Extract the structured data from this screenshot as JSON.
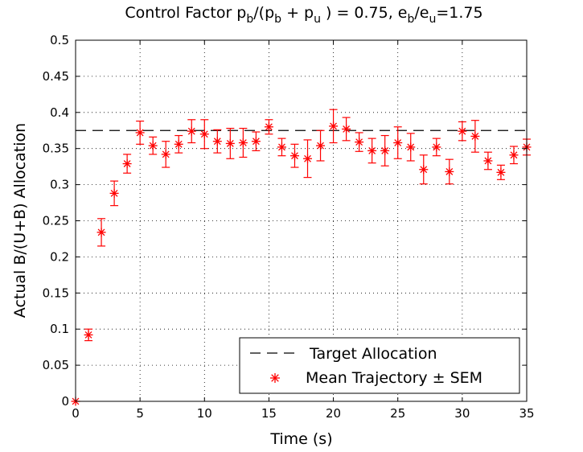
{
  "chart_data": {
    "type": "scatter",
    "title_parts": {
      "a": "Control Factor p",
      "b_sub": "b",
      "c": "/(p",
      "d_sub": "b",
      "e": " + p",
      "f_sub": "u",
      "g": " ) = 0.75, e",
      "h_sub": "b",
      "i": "/e",
      "j_sub": "u",
      "k": "=1.75"
    },
    "xlabel": "Time (s)",
    "ylabel": "Actual B/(U+B) Allocation",
    "xlim": [
      0,
      35
    ],
    "ylim": [
      0,
      0.5
    ],
    "xticks": [
      0,
      5,
      10,
      15,
      20,
      25,
      30,
      35
    ],
    "yticks": [
      0,
      0.05,
      0.1,
      0.15,
      0.2,
      0.25,
      0.3,
      0.35,
      0.4,
      0.45,
      0.5
    ],
    "xtick_labels": [
      "0",
      "5",
      "10",
      "15",
      "20",
      "25",
      "30",
      "35"
    ],
    "ytick_labels": [
      "0",
      "0.05",
      "0.1",
      "0.15",
      "0.2",
      "0.25",
      "0.3",
      "0.35",
      "0.4",
      "0.45",
      "0.5"
    ],
    "grid": true,
    "legend_position": "bottom-right",
    "target": {
      "name": "Target Allocation",
      "value": 0.375,
      "color": "#000000",
      "style": "dashed"
    },
    "series": [
      {
        "name": "Mean Trajectory ± SEM",
        "color": "#ff0000",
        "marker": "asterisk",
        "x": [
          0,
          1,
          2,
          3,
          4,
          5,
          6,
          7,
          8,
          9,
          10,
          11,
          12,
          13,
          14,
          15,
          16,
          17,
          18,
          19,
          20,
          21,
          22,
          23,
          24,
          25,
          26,
          27,
          28,
          29,
          30,
          31,
          32,
          33,
          34,
          35
        ],
        "y": [
          0.0,
          0.092,
          0.234,
          0.288,
          0.329,
          0.372,
          0.354,
          0.342,
          0.356,
          0.374,
          0.37,
          0.36,
          0.357,
          0.358,
          0.36,
          0.38,
          0.352,
          0.34,
          0.336,
          0.354,
          0.381,
          0.377,
          0.359,
          0.347,
          0.347,
          0.358,
          0.352,
          0.321,
          0.352,
          0.318,
          0.374,
          0.367,
          0.333,
          0.317,
          0.341,
          0.352
        ],
        "sem": [
          0.0,
          0.008,
          0.019,
          0.017,
          0.013,
          0.016,
          0.012,
          0.018,
          0.012,
          0.016,
          0.02,
          0.016,
          0.021,
          0.02,
          0.013,
          0.01,
          0.012,
          0.016,
          0.026,
          0.021,
          0.023,
          0.016,
          0.013,
          0.017,
          0.021,
          0.022,
          0.019,
          0.02,
          0.012,
          0.017,
          0.013,
          0.022,
          0.012,
          0.01,
          0.012,
          0.011
        ]
      }
    ]
  }
}
